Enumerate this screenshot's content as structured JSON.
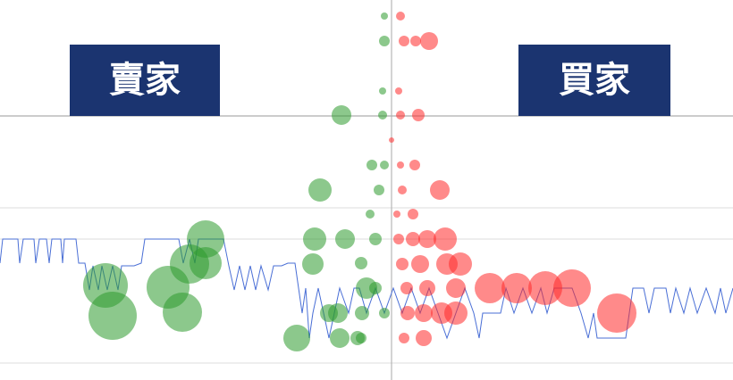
{
  "chart_data": {
    "type": "bubble",
    "xlim": [
      0,
      820
    ],
    "ylim": [
      426,
      0
    ],
    "yticks": [
      130,
      233,
      268,
      407
    ],
    "grid": true,
    "center_line": 438,
    "series": [
      {
        "name": "賣家",
        "color": "#2e9a2e",
        "x": [
          430,
          430,
          428,
          428,
          416,
          430,
          424,
          414,
          420,
          404,
          420,
          405,
          430,
          404,
          382,
          358,
          352,
          386,
          350,
          410,
          378,
          332,
          380,
          400,
          368,
          118,
          126,
          188,
          204,
          230,
          212,
          230
        ],
        "y": [
          18,
          46,
          102,
          129,
          185,
          185,
          213,
          240,
          268,
          295,
          323,
          351,
          351,
          379,
          129,
          213,
          268,
          268,
          296,
          323,
          351,
          379,
          379,
          379,
          351,
          320,
          354,
          322,
          350,
          268,
          296,
          295
        ],
        "sizes": [
          4,
          6,
          4,
          5,
          6,
          5,
          6,
          5,
          7,
          7,
          7,
          8,
          6,
          6,
          11,
          13,
          13,
          11,
          12,
          12,
          11,
          15,
          11,
          8,
          10,
          25,
          27,
          24,
          22,
          21,
          22,
          18
        ]
      },
      {
        "name": "買家",
        "color": "#ff2a2a",
        "x": [
          448,
          452,
          465,
          480,
          446,
          448,
          468,
          438,
          448,
          464,
          450,
          492,
          444,
          462,
          446,
          462,
          478,
          498,
          450,
          470,
          500,
          515,
          455,
          478,
          510,
          548,
          578,
          610,
          640,
          456,
          474,
          494,
          510,
          690,
          452,
          474
        ],
        "y": [
          18,
          46,
          46,
          46,
          102,
          129,
          129,
          157,
          185,
          185,
          213,
          213,
          240,
          240,
          268,
          268,
          268,
          268,
          296,
          296,
          296,
          296,
          323,
          323,
          323,
          323,
          323,
          323,
          323,
          351,
          351,
          351,
          351,
          351,
          379,
          379
        ],
        "sizes": [
          5,
          6,
          6,
          10,
          4,
          5,
          7,
          3,
          4,
          6,
          5,
          11,
          4,
          6,
          6,
          8,
          10,
          13,
          7,
          10,
          12,
          13,
          7,
          9,
          11,
          17,
          17,
          19,
          21,
          8,
          10,
          12,
          13,
          22,
          6,
          9
        ]
      }
    ],
    "line": {
      "color": "#4a6fd6",
      "x": [
        0,
        3,
        20,
        22,
        26,
        38,
        40,
        44,
        52,
        55,
        58,
        68,
        70,
        72,
        85,
        88,
        95,
        100,
        104,
        110,
        114,
        120,
        126,
        132,
        136,
        150,
        158,
        162,
        200,
        205,
        212,
        218,
        222,
        250,
        256,
        262,
        268,
        274,
        280,
        286,
        292,
        300,
        306,
        315,
        322,
        330,
        334,
        338,
        342,
        346,
        350,
        356,
        362,
        368,
        374,
        380,
        390,
        396,
        402,
        410,
        420,
        430,
        440,
        450,
        460,
        470,
        480,
        490,
        500,
        510,
        520,
        530,
        536,
        540,
        560,
        566,
        575,
        585,
        595,
        605,
        612,
        620,
        640,
        650,
        658,
        664,
        668,
        700,
        704,
        708,
        720,
        726,
        732,
        745,
        750,
        756,
        765,
        772,
        780,
        790,
        800,
        806,
        812,
        820
      ],
      "y": [
        295,
        268,
        268,
        295,
        268,
        268,
        295,
        268,
        268,
        295,
        268,
        268,
        295,
        268,
        268,
        295,
        295,
        325,
        298,
        325,
        298,
        325,
        298,
        325,
        298,
        298,
        295,
        268,
        268,
        295,
        268,
        295,
        268,
        268,
        298,
        325,
        298,
        325,
        298,
        325,
        298,
        325,
        298,
        298,
        295,
        295,
        323,
        351,
        323,
        379,
        351,
        323,
        351,
        379,
        351,
        323,
        351,
        323,
        323,
        351,
        323,
        351,
        323,
        351,
        323,
        351,
        323,
        351,
        379,
        351,
        323,
        351,
        379,
        351,
        351,
        323,
        351,
        323,
        351,
        323,
        351,
        323,
        323,
        351,
        379,
        351,
        379,
        379,
        351,
        323,
        323,
        351,
        323,
        323,
        351,
        323,
        351,
        323,
        351,
        323,
        351,
        323,
        351,
        323
      ]
    }
  }
}
